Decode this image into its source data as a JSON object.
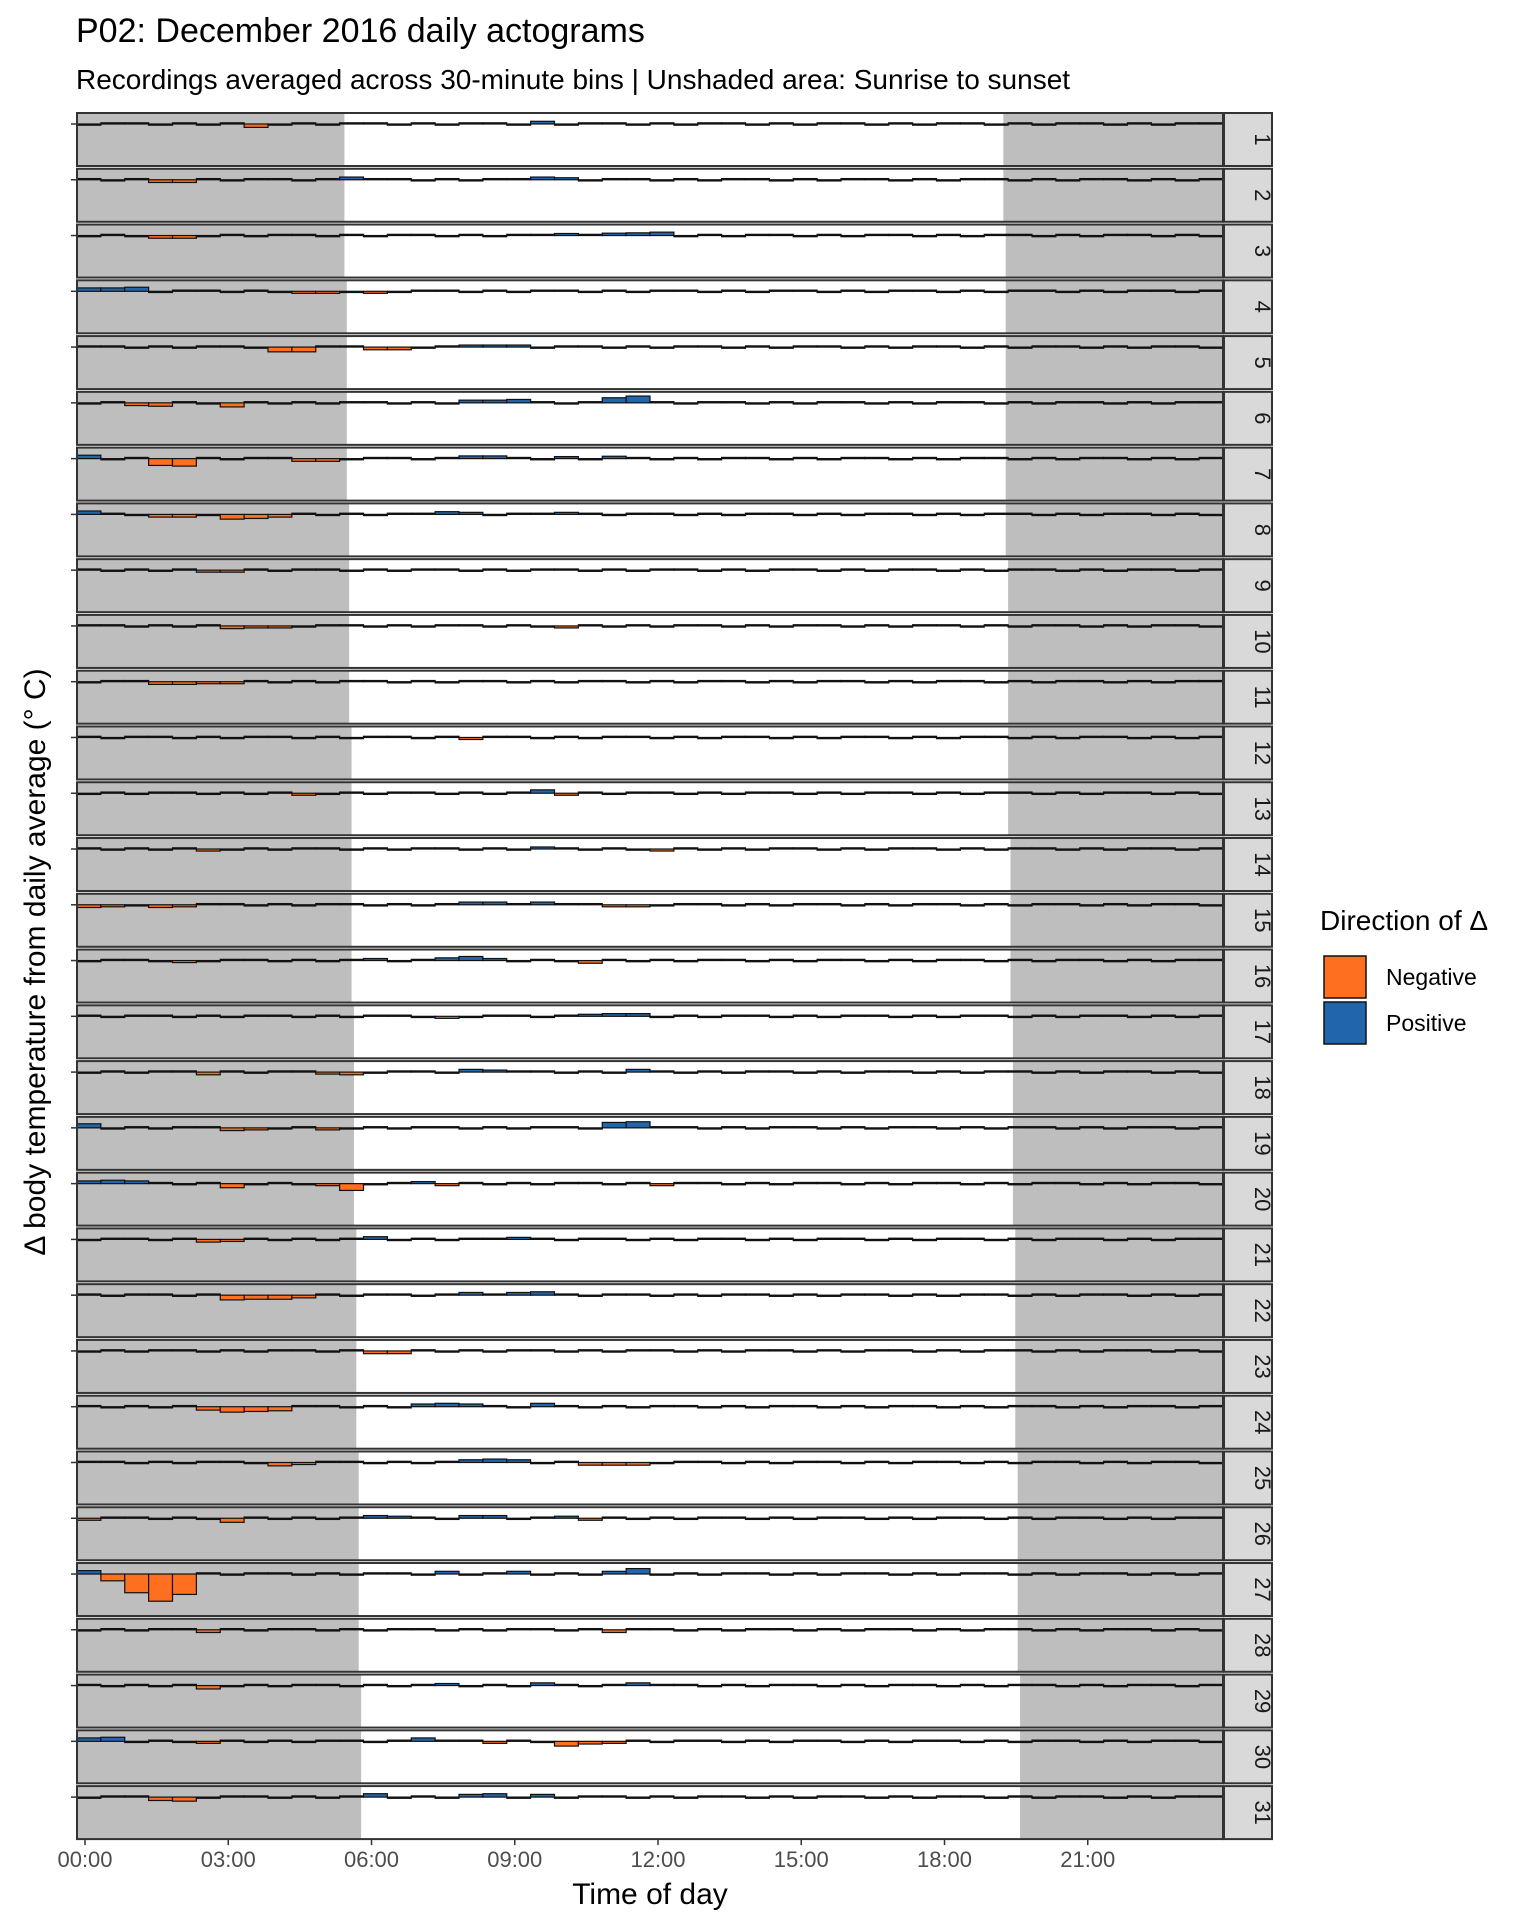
{
  "chart_data": {
    "type": "bar",
    "title": "P02: December 2016 daily actograms",
    "subtitle": "Recordings averaged across 30-minute bins | Unshaded area: Sunrise to sunset",
    "xlabel": "Time of day",
    "ylabel": "Δ body temperature from daily average (° C)",
    "x_ticks": [
      "00:00",
      "03:00",
      "06:00",
      "09:00",
      "12:00",
      "15:00",
      "18:00",
      "21:00"
    ],
    "x_tick_hours": [
      0,
      3,
      6,
      9,
      12,
      15,
      18,
      21
    ],
    "xlim_hours": [
      0,
      24
    ],
    "bin_hours": 0.5,
    "legend": {
      "title": "Direction of Δ",
      "position": "right",
      "entries": [
        {
          "label": "Negative",
          "color": "#FF6F20"
        },
        {
          "label": "Positive",
          "color": "#2166AC"
        }
      ]
    },
    "shading": {
      "color": "#bebebe",
      "meaning": "Unshaded area: Sunrise to sunset"
    },
    "panels": [
      {
        "label": "1",
        "sunrise": 5.6,
        "sunset": 19.4,
        "dev": {
          "7": -0.1,
          "19": 0.08
        }
      },
      {
        "label": "2",
        "sunrise": 5.6,
        "sunset": 19.4,
        "dev": {
          "3": -0.08,
          "4": -0.08,
          "11": 0.08,
          "19": 0.08,
          "20": 0.06
        }
      },
      {
        "label": "3",
        "sunrise": 5.6,
        "sunset": 19.45,
        "dev": {
          "3": -0.08,
          "4": -0.08,
          "20": 0.06,
          "22": 0.07,
          "23": 0.08,
          "24": 0.1
        }
      },
      {
        "label": "4",
        "sunrise": 5.65,
        "sunset": 19.45,
        "dev": {
          "0": 0.1,
          "1": 0.1,
          "2": 0.12,
          "9": -0.06,
          "10": -0.06,
          "12": -0.06
        }
      },
      {
        "label": "5",
        "sunrise": 5.65,
        "sunset": 19.45,
        "dev": {
          "8": -0.14,
          "9": -0.14,
          "12": -0.08,
          "13": -0.08,
          "16": 0.06,
          "17": 0.06,
          "18": 0.06
        }
      },
      {
        "label": "6",
        "sunrise": 5.65,
        "sunset": 19.45,
        "dev": {
          "2": -0.08,
          "3": -0.1,
          "6": -0.12,
          "16": 0.08,
          "17": 0.08,
          "18": 0.1,
          "22": 0.15,
          "23": 0.2
        }
      },
      {
        "label": "7",
        "sunrise": 5.65,
        "sunset": 19.45,
        "dev": {
          "0": 0.1,
          "3": -0.2,
          "4": -0.22,
          "9": -0.08,
          "10": -0.08,
          "16": 0.08,
          "17": 0.08,
          "20": 0.06,
          "22": 0.07
        }
      },
      {
        "label": "8",
        "sunrise": 5.7,
        "sunset": 19.45,
        "dev": {
          "0": 0.1,
          "3": -0.08,
          "4": -0.08,
          "6": -0.14,
          "7": -0.12,
          "8": -0.08,
          "15": 0.08,
          "16": 0.06,
          "20": 0.06
        }
      },
      {
        "label": "9",
        "sunrise": 5.7,
        "sunset": 19.5,
        "dev": {
          "5": -0.06,
          "6": -0.06
        }
      },
      {
        "label": "10",
        "sunrise": 5.7,
        "sunset": 19.5,
        "dev": {
          "6": -0.08,
          "7": -0.06,
          "8": -0.06,
          "20": -0.06
        }
      },
      {
        "label": "11",
        "sunrise": 5.7,
        "sunset": 19.5,
        "dev": {
          "3": -0.08,
          "4": -0.08,
          "5": -0.06,
          "6": -0.06
        }
      },
      {
        "label": "12",
        "sunrise": 5.75,
        "sunset": 19.5,
        "dev": {
          "16": -0.06
        }
      },
      {
        "label": "13",
        "sunrise": 5.75,
        "sunset": 19.5,
        "dev": {
          "9": -0.06,
          "19": 0.1,
          "20": -0.06
        }
      },
      {
        "label": "14",
        "sunrise": 5.75,
        "sunset": 19.55,
        "dev": {
          "5": -0.06,
          "19": 0.06,
          "24": -0.06
        }
      },
      {
        "label": "15",
        "sunrise": 5.75,
        "sunset": 19.55,
        "dev": {
          "0": -0.08,
          "1": -0.06,
          "3": -0.08,
          "4": -0.06,
          "16": 0.08,
          "17": 0.08,
          "19": 0.08,
          "22": -0.06,
          "23": -0.06
        }
      },
      {
        "label": "16",
        "sunrise": 5.75,
        "sunset": 19.55,
        "dev": {
          "4": -0.06,
          "12": 0.06,
          "15": 0.08,
          "16": 0.12,
          "17": 0.06,
          "21": -0.08
        }
      },
      {
        "label": "17",
        "sunrise": 5.8,
        "sunset": 19.6,
        "dev": {
          "15": -0.06,
          "21": 0.06,
          "22": 0.08,
          "23": 0.08
        }
      },
      {
        "label": "18",
        "sunrise": 5.8,
        "sunset": 19.6,
        "dev": {
          "5": -0.08,
          "10": -0.06,
          "11": -0.08,
          "16": 0.08,
          "17": 0.06,
          "23": 0.08
        }
      },
      {
        "label": "19",
        "sunrise": 5.8,
        "sunset": 19.6,
        "dev": {
          "0": 0.12,
          "6": -0.08,
          "7": -0.06,
          "10": -0.06,
          "22": 0.16,
          "23": 0.18
        }
      },
      {
        "label": "20",
        "sunrise": 5.8,
        "sunset": 19.6,
        "dev": {
          "0": 0.08,
          "1": 0.1,
          "2": 0.08,
          "6": -0.12,
          "10": -0.06,
          "11": -0.2,
          "14": 0.06,
          "15": -0.06,
          "24": -0.06
        }
      },
      {
        "label": "21",
        "sunrise": 5.85,
        "sunset": 19.65,
        "dev": {
          "5": -0.08,
          "6": -0.06,
          "12": 0.08,
          "18": 0.06
        }
      },
      {
        "label": "22",
        "sunrise": 5.85,
        "sunset": 19.65,
        "dev": {
          "6": -0.14,
          "7": -0.12,
          "8": -0.12,
          "9": -0.08,
          "16": 0.08,
          "18": 0.08,
          "19": 0.1
        }
      },
      {
        "label": "23",
        "sunrise": 5.85,
        "sunset": 19.65,
        "dev": {
          "12": -0.08,
          "13": -0.08
        }
      },
      {
        "label": "24",
        "sunrise": 5.85,
        "sunset": 19.65,
        "dev": {
          "5": -0.1,
          "6": -0.16,
          "7": -0.14,
          "8": -0.12,
          "14": 0.08,
          "15": 0.1,
          "16": 0.08,
          "19": 0.1
        }
      },
      {
        "label": "25",
        "sunrise": 5.9,
        "sunset": 19.7,
        "dev": {
          "8": -0.1,
          "9": -0.06,
          "16": 0.08,
          "17": 0.1,
          "18": 0.08,
          "21": -0.08,
          "22": -0.08,
          "23": -0.08
        }
      },
      {
        "label": "26",
        "sunrise": 5.9,
        "sunset": 19.7,
        "dev": {
          "0": -0.06,
          "6": -0.12,
          "12": 0.08,
          "13": 0.06,
          "16": 0.08,
          "17": 0.08,
          "20": 0.06,
          "21": -0.06
        }
      },
      {
        "label": "27",
        "sunrise": 5.9,
        "sunset": 19.7,
        "dev": {
          "0": 0.1,
          "1": -0.2,
          "2": -0.55,
          "3": -0.8,
          "4": -0.6,
          "15": 0.08,
          "18": 0.08,
          "22": 0.08,
          "23": 0.16
        }
      },
      {
        "label": "28",
        "sunrise": 5.9,
        "sunset": 19.7,
        "dev": {
          "5": -0.08,
          "22": -0.08
        }
      },
      {
        "label": "29",
        "sunrise": 5.95,
        "sunset": 19.75,
        "dev": {
          "5": -0.1,
          "15": 0.06,
          "19": 0.08,
          "23": 0.08
        }
      },
      {
        "label": "30",
        "sunrise": 5.95,
        "sunset": 19.75,
        "dev": {
          "0": 0.1,
          "1": 0.12,
          "5": -0.06,
          "14": 0.1,
          "17": -0.06,
          "20": -0.14,
          "21": -0.08,
          "22": -0.06
        }
      },
      {
        "label": "31",
        "sunrise": 5.95,
        "sunset": 19.75,
        "dev": {
          "3": -0.1,
          "4": -0.12,
          "12": 0.1,
          "16": 0.08,
          "17": 0.1,
          "19": 0.08
        }
      }
    ]
  }
}
